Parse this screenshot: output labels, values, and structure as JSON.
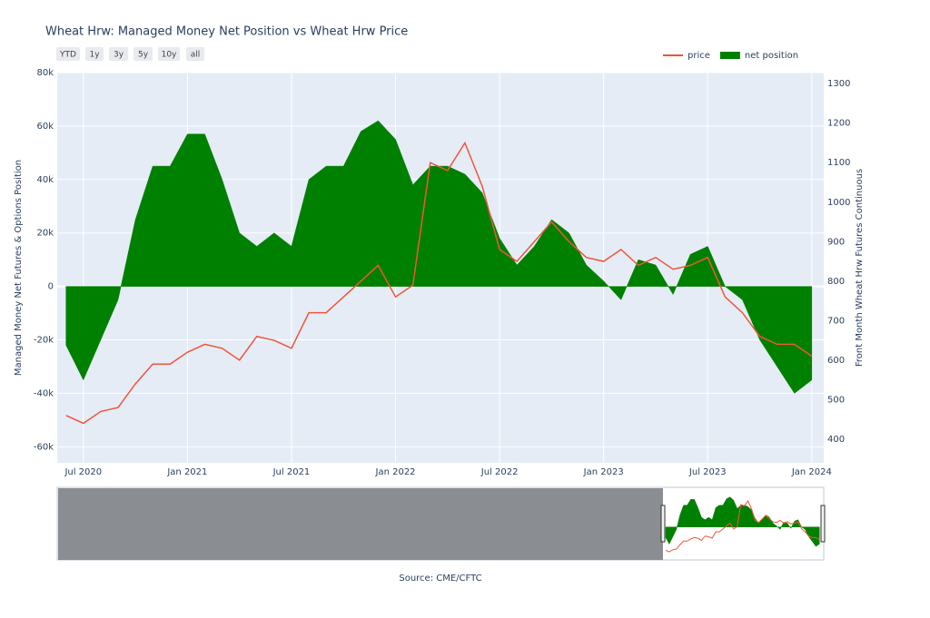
{
  "chart_data": {
    "type": "area-line",
    "title": "Wheat Hrw: Managed Money Net Position vs Wheat Hrw Price",
    "range_buttons": [
      "YTD",
      "1y",
      "3y",
      "5y",
      "10y",
      "all"
    ],
    "y_label": "Managed Money Net Futures & Options Position",
    "y2_label": "Front Month Wheat Hrw Futures Continuous",
    "source": "Source: CME/CFTC",
    "x": [
      "2020-06",
      "2020-07",
      "2020-08",
      "2020-09",
      "2020-10",
      "2020-11",
      "2020-12",
      "2021-01",
      "2021-02",
      "2021-03",
      "2021-04",
      "2021-05",
      "2021-06",
      "2021-07",
      "2021-08",
      "2021-09",
      "2021-10",
      "2021-11",
      "2021-12",
      "2022-01",
      "2022-02",
      "2022-03",
      "2022-04",
      "2022-05",
      "2022-06",
      "2022-07",
      "2022-08",
      "2022-09",
      "2022-10",
      "2022-11",
      "2022-12",
      "2023-01",
      "2023-02",
      "2023-03",
      "2023-04",
      "2023-05",
      "2023-06",
      "2023-07",
      "2023-08",
      "2023-09",
      "2023-10",
      "2023-11",
      "2023-12",
      "2024-01"
    ],
    "xlim": [
      "2020-05-16",
      "2024-01-22"
    ],
    "xticks": [
      {
        "value": "2020-07",
        "label": "Jul 2020"
      },
      {
        "value": "2021-01",
        "label": "Jan 2021"
      },
      {
        "value": "2021-07",
        "label": "Jul 2021"
      },
      {
        "value": "2022-01",
        "label": "Jan 2022"
      },
      {
        "value": "2022-07",
        "label": "Jul 2022"
      },
      {
        "value": "2023-01",
        "label": "Jan 2023"
      },
      {
        "value": "2023-07",
        "label": "Jul 2023"
      },
      {
        "value": "2024-01",
        "label": "Jan 2024"
      }
    ],
    "series": [
      {
        "name": "price",
        "color": "#ef553b",
        "axis": "y2",
        "values": [
          460,
          440,
          470,
          480,
          540,
          590,
          590,
          620,
          640,
          630,
          600,
          660,
          650,
          630,
          720,
          720,
          760,
          800,
          840,
          760,
          790,
          1100,
          1080,
          1150,
          1040,
          880,
          850,
          900,
          950,
          900,
          860,
          850,
          880,
          840,
          860,
          830,
          840,
          860,
          760,
          720,
          660,
          640,
          640,
          610
        ]
      },
      {
        "name": "net position",
        "color": "#008000",
        "values": [
          -22000,
          -35000,
          -20000,
          -5000,
          25000,
          45000,
          45000,
          57000,
          57000,
          40000,
          20000,
          15000,
          20000,
          15000,
          40000,
          45000,
          45000,
          58000,
          62000,
          55000,
          38000,
          45000,
          45000,
          42000,
          35000,
          18000,
          8000,
          15000,
          25000,
          20000,
          8000,
          2000,
          -5000,
          10000,
          8000,
          -3000,
          12000,
          15000,
          0,
          -5000,
          -20000,
          -30000,
          -40000,
          -35000
        ]
      }
    ],
    "ylim": [
      -66000,
      80000
    ],
    "yticks": [
      {
        "value": -60000,
        "label": "-60k"
      },
      {
        "value": -40000,
        "label": "-40k"
      },
      {
        "value": -20000,
        "label": "-20k"
      },
      0,
      {
        "value": 20000,
        "label": "20k"
      },
      {
        "value": 40000,
        "label": "40k"
      },
      {
        "value": 60000,
        "label": "60k"
      },
      {
        "value": 80000,
        "label": "80k"
      }
    ],
    "y2lim": [
      340,
      1328
    ],
    "y2ticks": [
      400,
      500,
      600,
      700,
      800,
      900,
      1000,
      1100,
      1200,
      1300
    ],
    "grid": true,
    "legend": "top-right"
  }
}
